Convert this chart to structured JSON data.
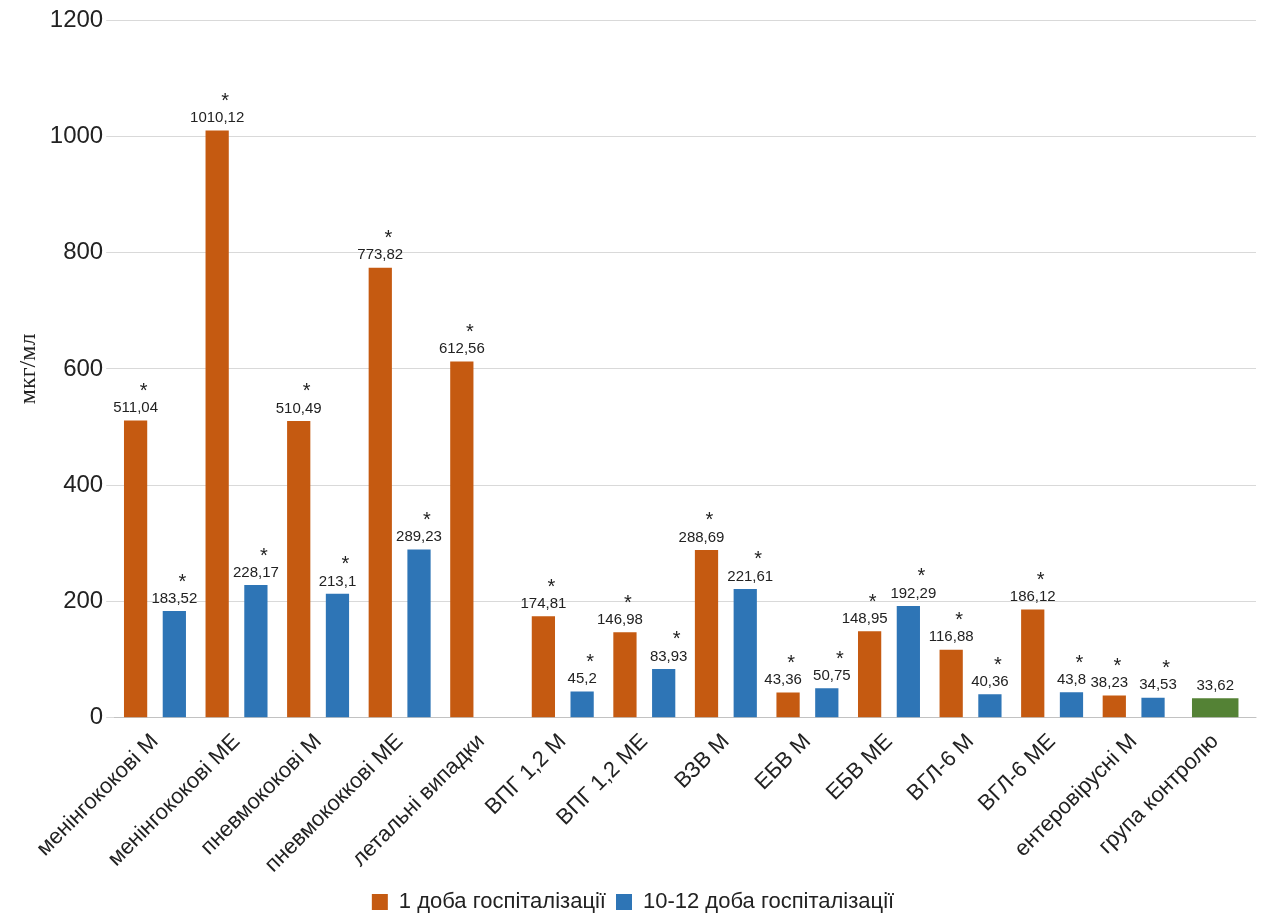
{
  "chart_data": {
    "type": "bar",
    "ylabel": "мкг/мл",
    "categories": [
      "менінгококові М",
      "менінгококові МЕ",
      "пневмококові М",
      "пневмококкові МЕ",
      "летальні випадки",
      "ВПГ 1,2 М",
      "ВПГ 1,2 МЕ",
      "ВЗВ М",
      "ЕБВ М",
      "ЕБВ МЕ",
      "ВГЛ-6 М",
      "ВГЛ-6 МЕ",
      "ентеровірусні М",
      "група контролю"
    ],
    "series": [
      {
        "name": "1 доба госпіталізації",
        "color": "#c55a11",
        "values": [
          511.04,
          1010.12,
          510.49,
          773.82,
          612.56,
          174.81,
          146.98,
          288.69,
          43.36,
          148.95,
          116.88,
          186.12,
          38.23,
          null
        ],
        "value_labels": [
          "511,04",
          "1010,12",
          "510,49",
          "773,82",
          "612,56",
          "174,81",
          "146,98",
          "288,69",
          "43,36",
          "148,95",
          "116,88",
          "186,12",
          "38,23",
          null
        ]
      },
      {
        "name": "10-12 доба госпіталізації",
        "color": "#2e75b6",
        "values": [
          183.52,
          228.17,
          213.1,
          289.23,
          null,
          45.2,
          83.93,
          221.61,
          50.75,
          192.29,
          40.36,
          43.8,
          34.53,
          null
        ],
        "value_labels": [
          "183,52",
          "228,17",
          "213,1",
          "289,23",
          null,
          "45,2",
          "83,93",
          "221,61",
          "50,75",
          "192,29",
          "40,36",
          "43,8",
          "34,53",
          null
        ]
      },
      {
        "color": "#548235",
        "values": [
          null,
          null,
          null,
          null,
          null,
          null,
          null,
          null,
          null,
          null,
          null,
          null,
          null,
          33.62
        ],
        "value_labels": [
          null,
          null,
          null,
          null,
          null,
          null,
          null,
          null,
          null,
          null,
          null,
          null,
          null,
          "33,62"
        ]
      }
    ],
    "ylim": [
      0,
      1200
    ],
    "yticks": [
      0,
      200,
      400,
      600,
      800,
      1000,
      1200
    ],
    "grid": "y",
    "legend": "bottom",
    "annotations": [
      "*",
      "*",
      "*",
      "*",
      "*",
      "*",
      "*",
      "*",
      "*",
      "*",
      "*",
      "*",
      "*",
      "*",
      "*",
      "*",
      "*",
      "*",
      "*",
      "*",
      "*",
      "*",
      "*",
      "*",
      "*"
    ]
  }
}
